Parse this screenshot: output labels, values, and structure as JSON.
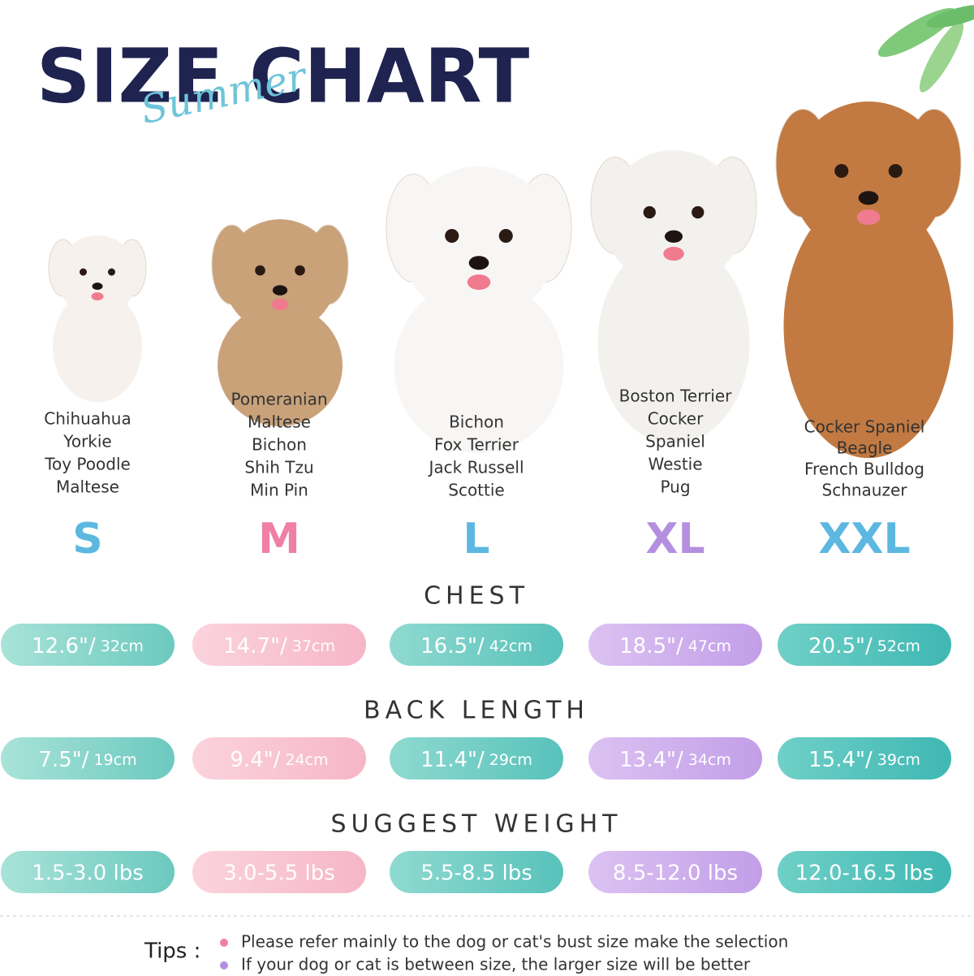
{
  "header": {
    "title": "SIZE CHART",
    "subtitle": "Summer"
  },
  "sizes": [
    {
      "size": "S",
      "breeds": [
        "Chihuahua",
        "Yorkie",
        "Toy Poodle",
        "Maltese"
      ]
    },
    {
      "size": "M",
      "breeds": [
        "Pomeranian",
        "Maltese",
        "Bichon",
        "Shih Tzu",
        "Min Pin"
      ]
    },
    {
      "size": "L",
      "breeds": [
        "Bichon",
        "Fox Terrier",
        "Jack Russell",
        "Scottie"
      ]
    },
    {
      "size": "XL",
      "breeds": [
        "Boston Terrier",
        "Cocker",
        "Spaniel",
        "Westie",
        "Pug"
      ]
    },
    {
      "size": "XXL",
      "breeds": [
        "Cocker Spaniel",
        "Beagle",
        "French Bulldog",
        "Schnauzer"
      ]
    }
  ],
  "sections": [
    {
      "title": "CHEST",
      "values": [
        {
          "inches": "12.6\"/",
          "cm": "32cm"
        },
        {
          "inches": "14.7\"/",
          "cm": "37cm"
        },
        {
          "inches": "16.5\"/",
          "cm": "42cm"
        },
        {
          "inches": "18.5\"/",
          "cm": "47cm"
        },
        {
          "inches": "20.5\"/",
          "cm": "52cm"
        }
      ]
    },
    {
      "title": "BACK LENGTH",
      "values": [
        {
          "inches": "7.5\"/",
          "cm": "19cm"
        },
        {
          "inches": "9.4\"/",
          "cm": "24cm"
        },
        {
          "inches": "11.4\"/",
          "cm": "29cm"
        },
        {
          "inches": "13.4\"/",
          "cm": "34cm"
        },
        {
          "inches": "15.4\"/",
          "cm": "39cm"
        }
      ]
    },
    {
      "title": "SUGGEST WEIGHT",
      "values": [
        "1.5-3.0 lbs",
        "3.0-5.5 lbs",
        "5.5-8.5 lbs",
        "8.5-12.0 lbs",
        "12.0-16.5 lbs"
      ]
    }
  ],
  "tips": {
    "label": "Tips :",
    "items": [
      "Please refer mainly to the dog or cat's bust size make the selection",
      "If your dog or cat is between size, the larger size will be better"
    ]
  }
}
